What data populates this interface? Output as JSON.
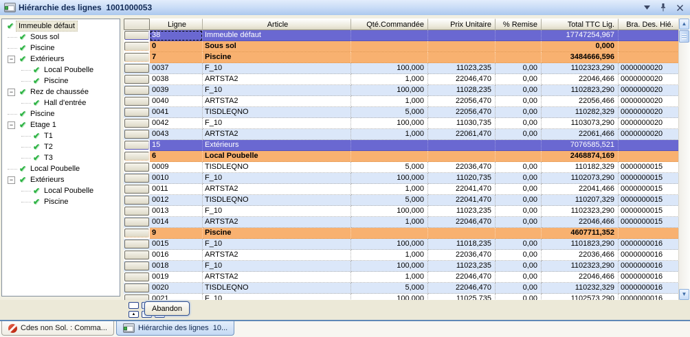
{
  "titlebar": {
    "title": "Hiérarchie des lignes  1001000053",
    "icons": [
      "form-icon",
      "chevron-down-icon",
      "pin-icon",
      "close-icon"
    ]
  },
  "colors": {
    "group_row": "#6a68d1",
    "subtotal_row": "#f8b170",
    "alt_row": "#dbe7f9",
    "titlebar_start": "#e2edfc",
    "titlebar_end": "#abc8ee"
  },
  "tree": {
    "items": [
      {
        "label": "Immeuble défaut",
        "level": 0,
        "expander": "none",
        "selected": true
      },
      {
        "label": "Sous sol",
        "level": 1,
        "expander": "none"
      },
      {
        "label": "Piscine",
        "level": 1,
        "expander": "none"
      },
      {
        "label": "Extérieurs",
        "level": 1,
        "expander": "minus"
      },
      {
        "label": "Local Poubelle",
        "level": 2,
        "expander": "none"
      },
      {
        "label": "Piscine",
        "level": 2,
        "expander": "none"
      },
      {
        "label": "Rez de chaussée",
        "level": 1,
        "expander": "minus"
      },
      {
        "label": "Hall d'entrée",
        "level": 2,
        "expander": "none"
      },
      {
        "label": "Piscine",
        "level": 1,
        "expander": "none"
      },
      {
        "label": "Etage 1",
        "level": 1,
        "expander": "minus"
      },
      {
        "label": "T1",
        "level": 2,
        "expander": "none"
      },
      {
        "label": "T2",
        "level": 2,
        "expander": "none"
      },
      {
        "label": "T3",
        "level": 2,
        "expander": "none"
      },
      {
        "label": "Local Poubelle",
        "level": 1,
        "expander": "none"
      },
      {
        "label": "Extérieurs",
        "level": 1,
        "expander": "minus"
      },
      {
        "label": "Local Poubelle",
        "level": 2,
        "expander": "none"
      },
      {
        "label": "Piscine",
        "level": 2,
        "expander": "none"
      }
    ]
  },
  "grid": {
    "columns": [
      "",
      "Ligne",
      "Article",
      "Qté.Commandée",
      "Prix Unitaire",
      "% Remise",
      "Total TTC Lig.",
      "Bra. Des. Hié."
    ],
    "rows": [
      {
        "kind": "group",
        "selected": true,
        "ligne": "38",
        "article": "Immeuble défaut",
        "qte": "",
        "prix": "",
        "remise": "",
        "total": "17747254,967",
        "bra": ""
      },
      {
        "kind": "subtotal",
        "ligne": "0",
        "article": "Sous sol",
        "qte": "",
        "prix": "",
        "remise": "",
        "total": "0,000",
        "bra": ""
      },
      {
        "kind": "subtotal",
        "ligne": "7",
        "article": "Piscine",
        "qte": "",
        "prix": "",
        "remise": "",
        "total": "3484666,596",
        "bra": ""
      },
      {
        "kind": "data",
        "alt": true,
        "ligne": "0037",
        "article": "F_10",
        "qte": "100,000",
        "prix": "11023,235",
        "remise": "0,00",
        "total": "1102323,290",
        "bra": "0000000020"
      },
      {
        "kind": "data",
        "alt": false,
        "ligne": "0038",
        "article": "ARTSTA2",
        "qte": "1,000",
        "prix": "22046,470",
        "remise": "0,00",
        "total": "22046,466",
        "bra": "0000000020"
      },
      {
        "kind": "data",
        "alt": true,
        "ligne": "0039",
        "article": "F_10",
        "qte": "100,000",
        "prix": "11028,235",
        "remise": "0,00",
        "total": "1102823,290",
        "bra": "0000000020"
      },
      {
        "kind": "data",
        "alt": false,
        "ligne": "0040",
        "article": "ARTSTA2",
        "qte": "1,000",
        "prix": "22056,470",
        "remise": "0,00",
        "total": "22056,466",
        "bra": "0000000020"
      },
      {
        "kind": "data",
        "alt": true,
        "ligne": "0041",
        "article": "TISDLEQNO",
        "qte": "5,000",
        "prix": "22056,470",
        "remise": "0,00",
        "total": "110282,329",
        "bra": "0000000020"
      },
      {
        "kind": "data",
        "alt": false,
        "ligne": "0042",
        "article": "F_10",
        "qte": "100,000",
        "prix": "11030,735",
        "remise": "0,00",
        "total": "1103073,290",
        "bra": "0000000020"
      },
      {
        "kind": "data",
        "alt": true,
        "ligne": "0043",
        "article": "ARTSTA2",
        "qte": "1,000",
        "prix": "22061,470",
        "remise": "0,00",
        "total": "22061,466",
        "bra": "0000000020"
      },
      {
        "kind": "group",
        "ligne": "15",
        "article": "Extérieurs",
        "qte": "",
        "prix": "",
        "remise": "",
        "total": "7076585,521",
        "bra": ""
      },
      {
        "kind": "subtotal",
        "ligne": "6",
        "article": "Local Poubelle",
        "qte": "",
        "prix": "",
        "remise": "",
        "total": "2468874,169",
        "bra": ""
      },
      {
        "kind": "data",
        "alt": false,
        "ligne": "0009",
        "article": "TISDLEQNO",
        "qte": "5,000",
        "prix": "22036,470",
        "remise": "0,00",
        "total": "110182,329",
        "bra": "0000000015"
      },
      {
        "kind": "data",
        "alt": true,
        "ligne": "0010",
        "article": "F_10",
        "qte": "100,000",
        "prix": "11020,735",
        "remise": "0,00",
        "total": "1102073,290",
        "bra": "0000000015"
      },
      {
        "kind": "data",
        "alt": false,
        "ligne": "0011",
        "article": "ARTSTA2",
        "qte": "1,000",
        "prix": "22041,470",
        "remise": "0,00",
        "total": "22041,466",
        "bra": "0000000015"
      },
      {
        "kind": "data",
        "alt": true,
        "ligne": "0012",
        "article": "TISDLEQNO",
        "qte": "5,000",
        "prix": "22041,470",
        "remise": "0,00",
        "total": "110207,329",
        "bra": "0000000015"
      },
      {
        "kind": "data",
        "alt": false,
        "ligne": "0013",
        "article": "F_10",
        "qte": "100,000",
        "prix": "11023,235",
        "remise": "0,00",
        "total": "1102323,290",
        "bra": "0000000015"
      },
      {
        "kind": "data",
        "alt": true,
        "ligne": "0014",
        "article": "ARTSTA2",
        "qte": "1,000",
        "prix": "22046,470",
        "remise": "0,00",
        "total": "22046,466",
        "bra": "0000000015"
      },
      {
        "kind": "subtotal",
        "ligne": "9",
        "article": "Piscine",
        "qte": "",
        "prix": "",
        "remise": "",
        "total": "4607711,352",
        "bra": ""
      },
      {
        "kind": "data",
        "alt": true,
        "ligne": "0015",
        "article": "F_10",
        "qte": "100,000",
        "prix": "11018,235",
        "remise": "0,00",
        "total": "1101823,290",
        "bra": "0000000016"
      },
      {
        "kind": "data",
        "alt": false,
        "ligne": "0016",
        "article": "ARTSTA2",
        "qte": "1,000",
        "prix": "22036,470",
        "remise": "0,00",
        "total": "22036,466",
        "bra": "0000000016"
      },
      {
        "kind": "data",
        "alt": true,
        "ligne": "0018",
        "article": "F_10",
        "qte": "100,000",
        "prix": "11023,235",
        "remise": "0,00",
        "total": "1102323,290",
        "bra": "0000000016"
      },
      {
        "kind": "data",
        "alt": false,
        "ligne": "0019",
        "article": "ARTSTA2",
        "qte": "1,000",
        "prix": "22046,470",
        "remise": "0,00",
        "total": "22046,466",
        "bra": "0000000016"
      },
      {
        "kind": "data",
        "alt": true,
        "ligne": "0020",
        "article": "TISDLEQNO",
        "qte": "5,000",
        "prix": "22046,470",
        "remise": "0,00",
        "total": "110232,329",
        "bra": "0000000016"
      },
      {
        "kind": "data",
        "alt": false,
        "ligne": "0021",
        "article": "F_10",
        "qte": "100,000",
        "prix": "11025,735",
        "remise": "0,00",
        "total": "1102573,290",
        "bra": "0000000016"
      }
    ]
  },
  "toolbar": {
    "nav_buttons": [
      {
        "icon": "blank-icon"
      },
      {
        "icon": "bar-icon"
      },
      {
        "icon": "red-down-arrow-icon"
      },
      {
        "icon": "up-arrow-icon"
      },
      {
        "icon": "down-arrow-icon"
      },
      {
        "icon": "first-last-icon"
      }
    ],
    "abandon_label": "Abandon"
  },
  "tabbar": {
    "tabs": [
      {
        "label": "Cdes non Sol. : Comma...",
        "icon": "no-entry",
        "active": false
      },
      {
        "label": "Hiérarchie des lignes  10...",
        "icon": "form",
        "active": true
      }
    ]
  }
}
